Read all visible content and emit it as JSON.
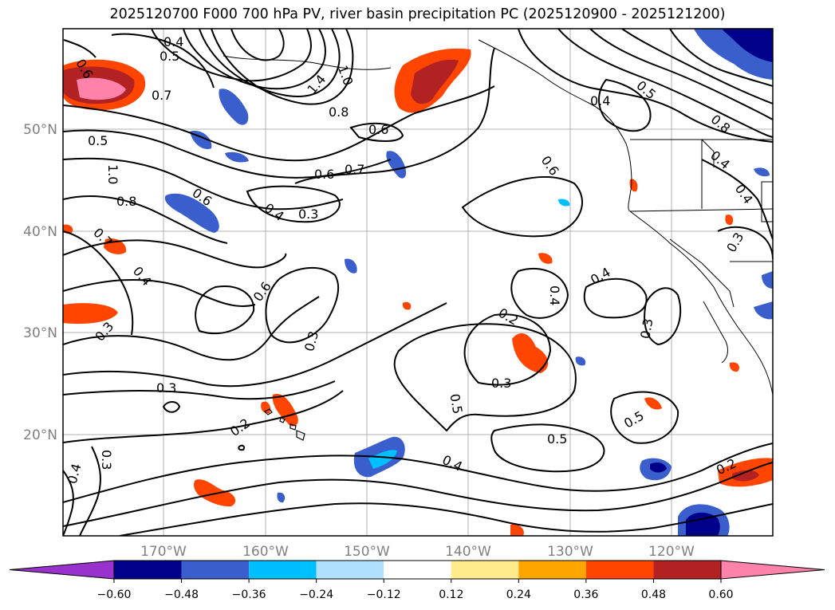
{
  "title": "2025120700 F000 700 hPa PV, river basin precipitation PC (2025120900 - 2025121200)",
  "lat_labels": [
    "50°N",
    "40°N",
    "30°N",
    "20°N"
  ],
  "lon_labels": [
    "170°W",
    "160°W",
    "150°W",
    "140°W",
    "130°W",
    "120°W"
  ],
  "contour_labels": [
    {
      "name": "label-0-4-a",
      "t": "0.4"
    },
    {
      "name": "label-0-5-a",
      "t": "0.5"
    },
    {
      "name": "label-0-6-a",
      "t": "0.6"
    },
    {
      "name": "label-1-4",
      "t": "1.4"
    },
    {
      "name": "label-1-0-a",
      "t": "1.0"
    },
    {
      "name": "label-0-7-a",
      "t": "0.7"
    },
    {
      "name": "label-0-8-a",
      "t": "0.8"
    },
    {
      "name": "label-0-6-b",
      "t": "0.6"
    },
    {
      "name": "label-0-5-b",
      "t": "0.5"
    },
    {
      "name": "label-1-0-b",
      "t": "1.0"
    },
    {
      "name": "label-0-8-b",
      "t": "0.8"
    },
    {
      "name": "label-0-6-c",
      "t": "0.6"
    },
    {
      "name": "label-0-7-b",
      "t": "0.7"
    },
    {
      "name": "label-0-6-d",
      "t": "0.6"
    },
    {
      "name": "label-0-7-c",
      "t": "0.7"
    },
    {
      "name": "label-0-4-b",
      "t": "0.4"
    },
    {
      "name": "label-0-3-a",
      "t": "0.3"
    },
    {
      "name": "label-0-6-e",
      "t": "0.6"
    },
    {
      "name": "label-0-4-c",
      "t": "0.4"
    },
    {
      "name": "label-0-5-c",
      "t": "0.5"
    },
    {
      "name": "label-0-8-c",
      "t": "0.8"
    },
    {
      "name": "label-0-4-d",
      "t": "0.4"
    },
    {
      "name": "label-0-4-e",
      "t": "0.4"
    },
    {
      "name": "label-0-3-b",
      "t": "0.3"
    },
    {
      "name": "label-0-4-f",
      "t": "0.4"
    },
    {
      "name": "label-0-3-c",
      "t": "0.3"
    },
    {
      "name": "label-0-6-f",
      "t": "0.6"
    },
    {
      "name": "label-0-3-d",
      "t": "0.3"
    },
    {
      "name": "label-0-4-g",
      "t": "0.4"
    },
    {
      "name": "label-0-4-h",
      "t": "0.4"
    },
    {
      "name": "label-0-2-a",
      "t": "0.2"
    },
    {
      "name": "label-0-3-e",
      "t": "0.3"
    },
    {
      "name": "label-0-3-f",
      "t": "0.3"
    },
    {
      "name": "label-0-3-g",
      "t": "0.3"
    },
    {
      "name": "label-0-5-d",
      "t": "0.5"
    },
    {
      "name": "label-0-2-b",
      "t": "0.2"
    },
    {
      "name": "label-0-5-e",
      "t": "0.5"
    },
    {
      "name": "label-0-5-f",
      "t": "0.5"
    },
    {
      "name": "label-0-4-i",
      "t": "0.4"
    },
    {
      "name": "label-0-4-j",
      "t": "0.4"
    },
    {
      "name": "label-0-3-h",
      "t": "0.3"
    },
    {
      "name": "label-0-2-c",
      "t": "0.2"
    }
  ],
  "colorbar": {
    "ticks": [
      "−0.60",
      "−0.48",
      "−0.36",
      "−0.24",
      "−0.12",
      "0.12",
      "0.24",
      "0.36",
      "0.48",
      "0.60"
    ],
    "colors": [
      "#9932cc",
      "#00008b",
      "#3a5fcd",
      "#00bfff",
      "#b0e2ff",
      "#ffffff",
      "#ffeb8c",
      "#ffa500",
      "#ff4500",
      "#b22222",
      "#ff82ab"
    ]
  }
}
